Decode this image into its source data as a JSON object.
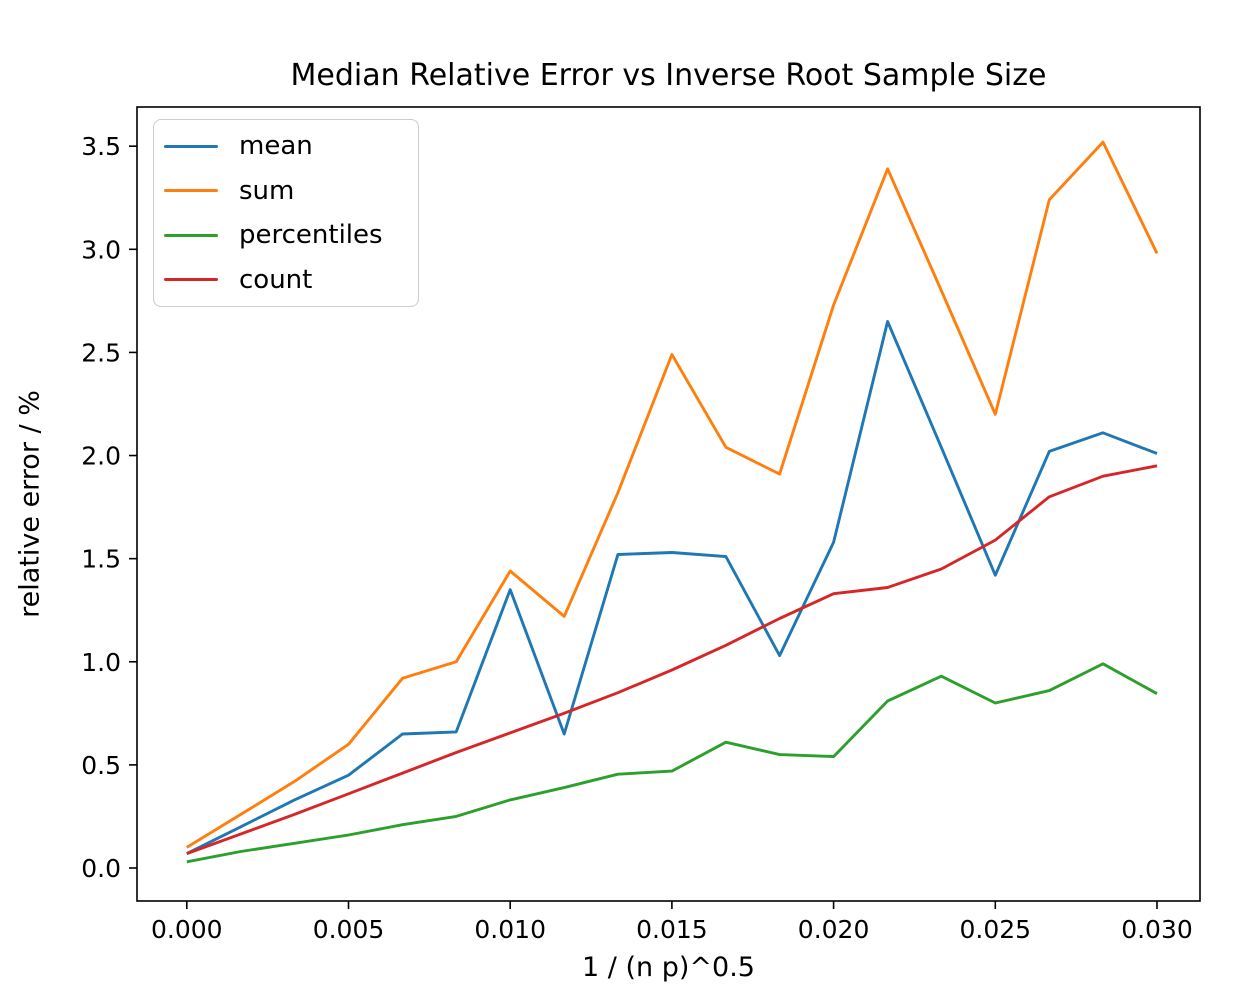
{
  "figure": {
    "title": "Median Relative Error vs Inverse Root Sample Size",
    "xlabel": "1 / (n p)^0.5",
    "ylabel": "relative error / %"
  },
  "chart_data": {
    "type": "line",
    "title": "Median Relative Error vs Inverse Root Sample Size",
    "xlabel": "1 / (n p)^0.5",
    "ylabel": "relative error / %",
    "grid": false,
    "legend_position": "upper left",
    "background_color": "#ffffff",
    "spine_color": "#000000",
    "x": [
      0.0,
      0.00167,
      0.00333,
      0.005,
      0.00667,
      0.00833,
      0.01,
      0.01167,
      0.01333,
      0.015,
      0.01667,
      0.01833,
      0.02,
      0.02167,
      0.02333,
      0.025,
      0.02667,
      0.02833,
      0.03
    ],
    "series": [
      {
        "name": "mean",
        "color": "#1f77b4",
        "values": [
          0.07,
          0.2,
          0.33,
          0.45,
          0.65,
          0.66,
          1.35,
          0.65,
          1.52,
          1.53,
          1.51,
          1.03,
          1.58,
          2.65,
          2.04,
          1.42,
          2.02,
          2.11,
          2.01
        ]
      },
      {
        "name": "sum",
        "color": "#ff7f0e",
        "values": [
          0.1,
          0.26,
          0.42,
          0.6,
          0.92,
          1.0,
          1.44,
          1.22,
          1.82,
          2.49,
          2.04,
          1.91,
          2.73,
          3.39,
          2.8,
          2.2,
          3.24,
          3.52,
          2.98
        ]
      },
      {
        "name": "percentiles",
        "color": "#2ca02c",
        "values": [
          0.03,
          0.08,
          0.12,
          0.16,
          0.21,
          0.25,
          0.33,
          0.39,
          0.455,
          0.47,
          0.61,
          0.55,
          0.54,
          0.81,
          0.93,
          0.8,
          0.86,
          0.99,
          0.845
        ]
      },
      {
        "name": "count",
        "color": "#d62728",
        "values": [
          0.07,
          0.165,
          0.26,
          0.36,
          0.46,
          0.56,
          0.655,
          0.75,
          0.85,
          0.96,
          1.08,
          1.21,
          1.33,
          1.36,
          1.45,
          1.59,
          1.8,
          1.9,
          1.95
        ]
      }
    ],
    "x_ticks": {
      "values": [
        0.0,
        0.005,
        0.01,
        0.015,
        0.02,
        0.025,
        0.03
      ],
      "labels": [
        "0.000",
        "0.005",
        "0.010",
        "0.015",
        "0.020",
        "0.025",
        "0.030"
      ]
    },
    "y_ticks": {
      "values": [
        0.0,
        0.5,
        1.0,
        1.5,
        2.0,
        2.5,
        3.0,
        3.5
      ],
      "labels": [
        "0.0",
        "0.5",
        "1.0",
        "1.5",
        "2.0",
        "2.5",
        "3.0",
        "3.5"
      ]
    },
    "xlim": [
      -0.00154,
      0.03133
    ],
    "ylim": [
      -0.16,
      3.69
    ]
  }
}
